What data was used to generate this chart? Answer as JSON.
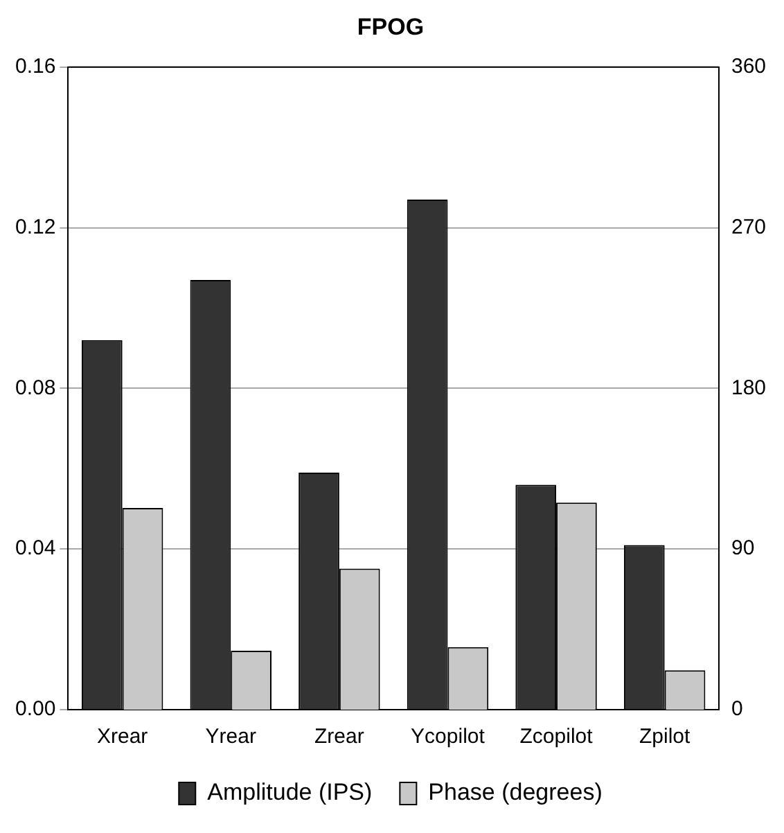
{
  "chart_data": {
    "type": "bar",
    "title": "FPOG",
    "categories": [
      "Xrear",
      "Yrear",
      "Zrear",
      "Ycopilot",
      "Zcopilot",
      "Zpilot"
    ],
    "series": [
      {
        "name": "Amplitude (IPS)",
        "color": "#333333",
        "values": [
          0.092,
          0.107,
          0.059,
          0.127,
          0.056,
          0.041
        ]
      },
      {
        "name": "Phase (degrees)",
        "color": "#c8c8c8",
        "axis": "y2",
        "values": [
          113,
          33,
          79,
          35,
          116,
          22
        ]
      }
    ],
    "ylim": [
      0,
      0.16
    ],
    "yticks": [
      {
        "value": 0,
        "label": "0.00"
      },
      {
        "value": 0.04,
        "label": "0.04"
      },
      {
        "value": 0.08,
        "label": "0.08"
      },
      {
        "value": 0.12,
        "label": "0.12"
      },
      {
        "value": 0.16,
        "label": "0.16"
      }
    ],
    "y2lim": [
      0,
      360
    ],
    "y2ticks": [
      0,
      90,
      180,
      270,
      360
    ],
    "grid": "y",
    "legend": "bottom"
  }
}
